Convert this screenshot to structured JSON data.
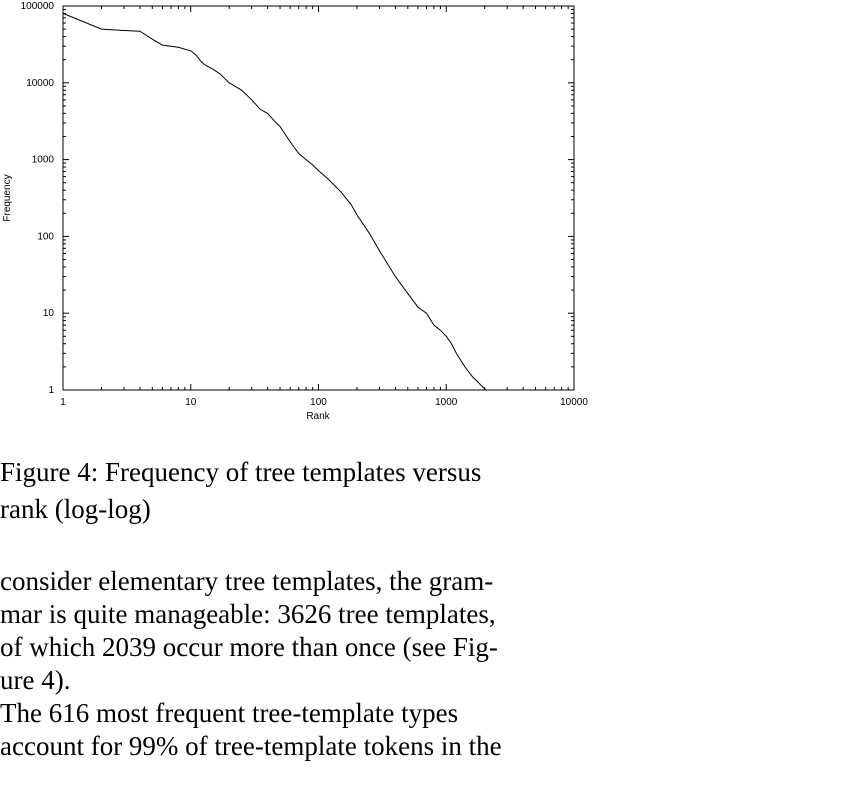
{
  "chart_data": {
    "type": "line",
    "title": "",
    "xlabel": "Rank",
    "ylabel": "Frequency",
    "x_scale": "log",
    "y_scale": "log",
    "xlim": [
      1,
      10000
    ],
    "ylim": [
      1,
      100000
    ],
    "xticks": [
      "1",
      "10",
      "100",
      "1000",
      "10000"
    ],
    "yticks": [
      "1",
      "10",
      "100",
      "1000",
      "10000",
      "100000"
    ],
    "grid": false,
    "series": [
      {
        "x": [
          1,
          2,
          3,
          4,
          5,
          6,
          8,
          10,
          11,
          12,
          13,
          15,
          17,
          20,
          25,
          30,
          35,
          40,
          45,
          50,
          60,
          70,
          80,
          90,
          100,
          120,
          150,
          180,
          200,
          250,
          300,
          400,
          500,
          600,
          700,
          800,
          900,
          1000,
          1100,
          1200,
          1400,
          1600,
          2039
        ],
        "y": [
          80000,
          50000,
          48000,
          47000,
          37000,
          31000,
          29000,
          26000,
          23000,
          19000,
          17000,
          15000,
          13000,
          10000,
          8000,
          6000,
          4500,
          4000,
          3200,
          2700,
          1700,
          1200,
          1000,
          850,
          720,
          550,
          380,
          260,
          190,
          110,
          65,
          30,
          18,
          12,
          10,
          7,
          6,
          5,
          4,
          3,
          2,
          1.5,
          1
        ]
      }
    ]
  },
  "figure": {
    "caption": "Figure 4: Frequency of tree templates versus\nrank (log-log)"
  },
  "body": {
    "paragraph1": "consider elementary tree templates, the gram-\nmar is quite manageable: 3626 tree templates,\nof which 2039 occur more than once (see Fig-\nure 4).",
    "paragraph2": "    The 616 most frequent tree-template types\naccount for 99% of tree-template tokens in the"
  }
}
